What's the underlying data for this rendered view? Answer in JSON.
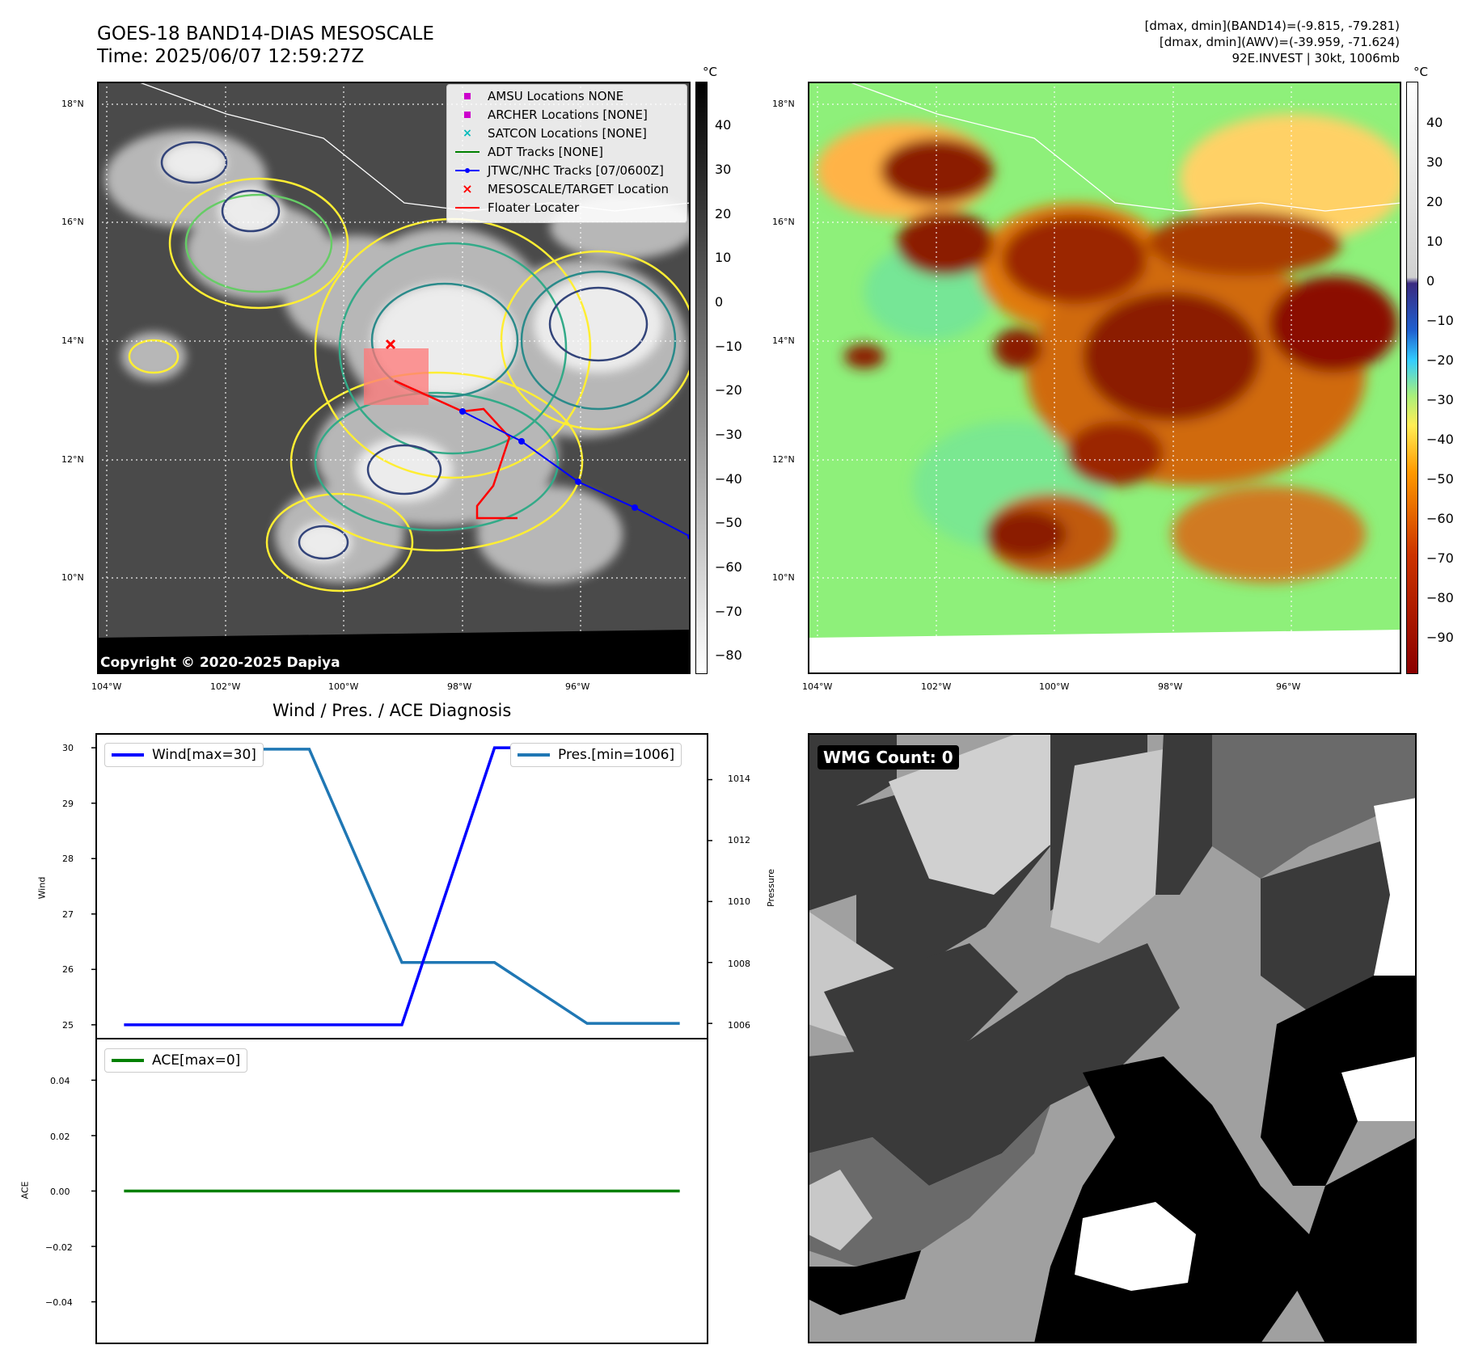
{
  "header": {
    "title_line1": "GOES-18 BAND14-DIAS MESOSCALE",
    "title_line2": "Time: 2025/06/07 12:59:27Z",
    "right_line1": "[dmax, dmin](BAND14)=(-9.815, -79.281)",
    "right_line2": "[dmax, dmin](AWV)=(-39.959, -71.624)",
    "right_line3": "92E.INVEST | 30kt, 1006mb"
  },
  "map": {
    "lat_labels": [
      "18°N",
      "16°N",
      "14°N",
      "12°N",
      "10°N"
    ],
    "lon_labels": [
      "104°W",
      "102°W",
      "100°W",
      "98°W",
      "96°W"
    ],
    "copyright": "Copyright © 2020-2025 Dapiya"
  },
  "legend": {
    "items": [
      {
        "label": "AMSU Locations NONE",
        "color": "#cc00cc",
        "symbol": "square"
      },
      {
        "label": "ARCHER Locations [NONE]",
        "color": "#cc00cc",
        "symbol": "square"
      },
      {
        "label": "SATCON Locations [NONE]",
        "color": "#00bbbb",
        "symbol": "x"
      },
      {
        "label": "ADT Tracks [NONE]",
        "color": "#008000",
        "symbol": "line"
      },
      {
        "label": "JTWC/NHC Tracks [07/0600Z]",
        "color": "#0000ff",
        "symbol": "line-dot"
      },
      {
        "label": "MESOSCALE/TARGET Location",
        "color": "#ff0000",
        "symbol": "x"
      },
      {
        "label": "Floater Locater",
        "color": "#ff0000",
        "symbol": "line"
      }
    ]
  },
  "colorbar_gray": {
    "unit": "°C",
    "ticks": [
      "40",
      "30",
      "20",
      "10",
      "0",
      "−10",
      "−20",
      "−30",
      "−40",
      "−50",
      "−60",
      "−70",
      "−80"
    ]
  },
  "colorbar_color": {
    "unit": "°C",
    "ticks": [
      "40",
      "30",
      "20",
      "10",
      "0",
      "−10",
      "−20",
      "−30",
      "−40",
      "−50",
      "−60",
      "−70",
      "−80",
      "−90"
    ]
  },
  "diag": {
    "title": "Wind / Pres. / ACE Diagnosis",
    "wind_axis_label": "Wind",
    "pressure_axis_label": "Pressure",
    "ace_axis_label": "ACE",
    "wind_ticks": [
      "30",
      "29",
      "28",
      "27",
      "26",
      "25"
    ],
    "pressure_ticks": [
      "1014",
      "1012",
      "1010",
      "1008",
      "1006"
    ],
    "ace_ticks": [
      "0.04",
      "0.02",
      "0.00",
      "−0.02",
      "−0.04"
    ],
    "wind_legend": "Wind[max=30]",
    "pres_legend": "Pres.[min=1006]",
    "ace_legend": "ACE[max=0]"
  },
  "wmg": {
    "badge": "WMG Count: 0"
  },
  "chart_data": [
    {
      "type": "line",
      "title": "Wind / Pres. / ACE Diagnosis",
      "x": [
        0,
        1,
        2,
        3,
        4,
        5,
        6
      ],
      "series": [
        {
          "name": "Wind[max=30]",
          "axis": "Wind",
          "color": "#0000ff",
          "values": [
            25,
            25,
            25,
            25,
            30,
            30,
            30
          ]
        },
        {
          "name": "Pres.[min=1006]",
          "axis": "Pressure",
          "color": "#1f77b4",
          "values": [
            1015,
            1015,
            1015,
            1008,
            1008,
            1006,
            1006
          ]
        }
      ],
      "ylim_wind": [
        24.75,
        30.25
      ],
      "ylim_pressure": [
        1005.5,
        1015.5
      ]
    },
    {
      "type": "line",
      "x": [
        0,
        1,
        2,
        3,
        4,
        5,
        6
      ],
      "series": [
        {
          "name": "ACE[max=0]",
          "axis": "ACE",
          "color": "#008000",
          "values": [
            0,
            0,
            0,
            0,
            0,
            0,
            0
          ]
        }
      ],
      "ylim": [
        -0.055,
        0.055
      ]
    }
  ]
}
